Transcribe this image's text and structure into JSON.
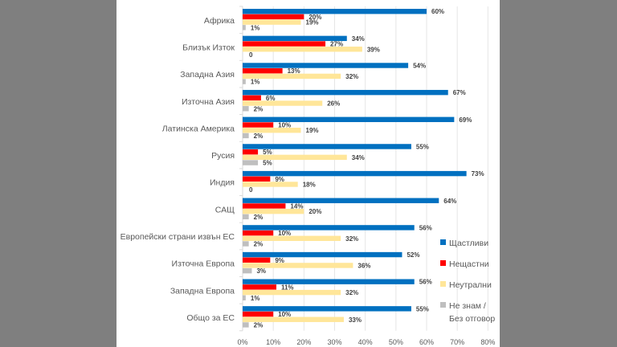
{
  "chart_data": {
    "type": "bar",
    "orientation": "horizontal",
    "categories": [
      "Африка",
      "Близък Изток",
      "Западна Азия",
      "Източна Азия",
      "Латинска Америка",
      "Русия",
      "Индия",
      "САЩ",
      "Европейски страни извън ЕС",
      "Източна Европа",
      "Западна Европа",
      "Общо за ЕС"
    ],
    "series": [
      {
        "name": "Щастливи",
        "color": "#0070c0",
        "values": [
          60,
          34,
          54,
          67,
          69,
          55,
          73,
          64,
          56,
          52,
          56,
          55
        ]
      },
      {
        "name": "Нещастни",
        "color": "#ff0000",
        "values": [
          20,
          27,
          13,
          6,
          10,
          5,
          9,
          14,
          10,
          9,
          11,
          10
        ]
      },
      {
        "name": "Неутрални",
        "color": "#ffe699",
        "values": [
          19,
          39,
          32,
          26,
          19,
          34,
          18,
          20,
          32,
          36,
          32,
          33
        ]
      },
      {
        "name": "Не знам / Без отговор",
        "name_lines": [
          "Не знам /",
          "Без отговор"
        ],
        "color": "#bfbfbf",
        "values": [
          1,
          0,
          1,
          2,
          2,
          5,
          0,
          2,
          2,
          3,
          1,
          2
        ]
      }
    ],
    "xlim": [
      0,
      80
    ],
    "xticks": [
      "0%",
      "10%",
      "20%",
      "30%",
      "40%",
      "50%",
      "60%",
      "70%",
      "80%"
    ],
    "grid": true,
    "legend": "right",
    "title": "",
    "xlabel": "",
    "ylabel": ""
  }
}
